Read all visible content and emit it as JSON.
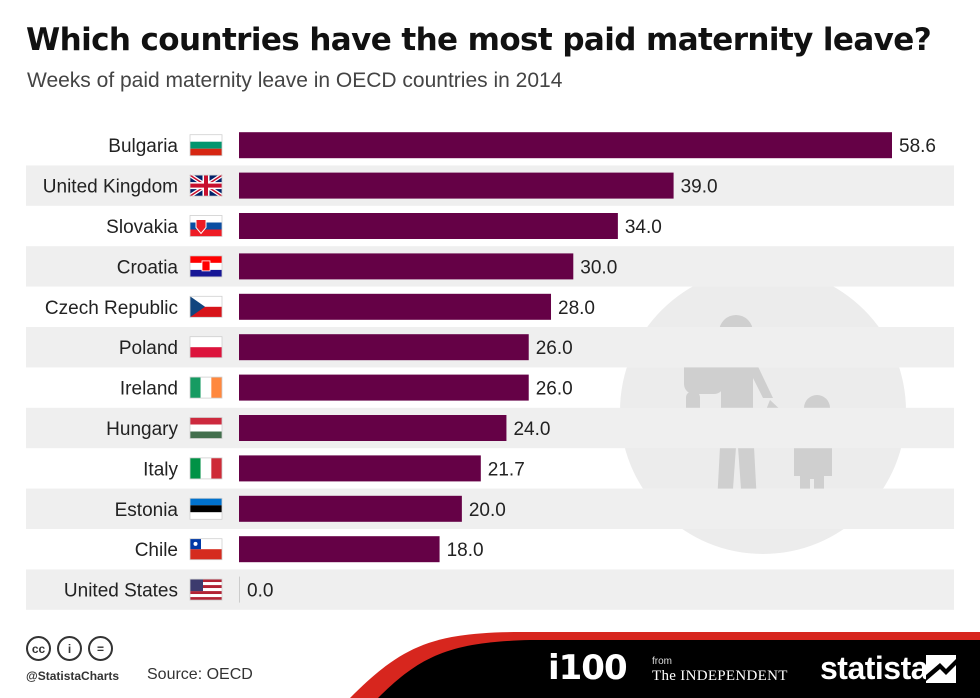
{
  "header": {
    "title": "Which countries have the most paid maternity leave?",
    "subtitle": "Weeks of paid maternity leave in OECD countries in 2014"
  },
  "chart_data": {
    "type": "bar",
    "orientation": "horizontal",
    "categories": [
      "Bulgaria",
      "United Kingdom",
      "Slovakia",
      "Croatia",
      "Czech Republic",
      "Poland",
      "Ireland",
      "Hungary",
      "Italy",
      "Estonia",
      "Chile",
      "United States"
    ],
    "values": [
      58.6,
      39.0,
      34.0,
      30.0,
      28.0,
      26.0,
      26.0,
      24.0,
      21.7,
      20.0,
      18.0,
      0.0
    ],
    "value_labels": [
      "58.6",
      "39.0",
      "34.0",
      "30.0",
      "28.0",
      "26.0",
      "26.0",
      "24.0",
      "21.7",
      "20.0",
      "18.0",
      "0.0"
    ],
    "flags": [
      "bulgaria-flag-icon",
      "uk-flag-icon",
      "slovakia-flag-icon",
      "croatia-flag-icon",
      "czech-flag-icon",
      "poland-flag-icon",
      "ireland-flag-icon",
      "hungary-flag-icon",
      "italy-flag-icon",
      "estonia-flag-icon",
      "chile-flag-icon",
      "usa-flag-icon"
    ],
    "bar_color": "#650146",
    "row_stripe_color": "#efefef",
    "xlim": [
      0,
      58.6
    ],
    "grid": false
  },
  "illustration": {
    "icon": "parent-with-children-icon"
  },
  "footer": {
    "handle": "@StatistaCharts",
    "source": "Source: OECD",
    "license_icons": [
      "cc-icon",
      "attribution-icon",
      "no-derivatives-icon"
    ],
    "license_texts": [
      "cc",
      "i",
      "="
    ],
    "brands": {
      "i100": "i100",
      "from": "from",
      "independent": "The INDEPENDENT",
      "statista": "statista"
    },
    "colors": {
      "band": "#000000",
      "accent": "#d7261e"
    }
  }
}
